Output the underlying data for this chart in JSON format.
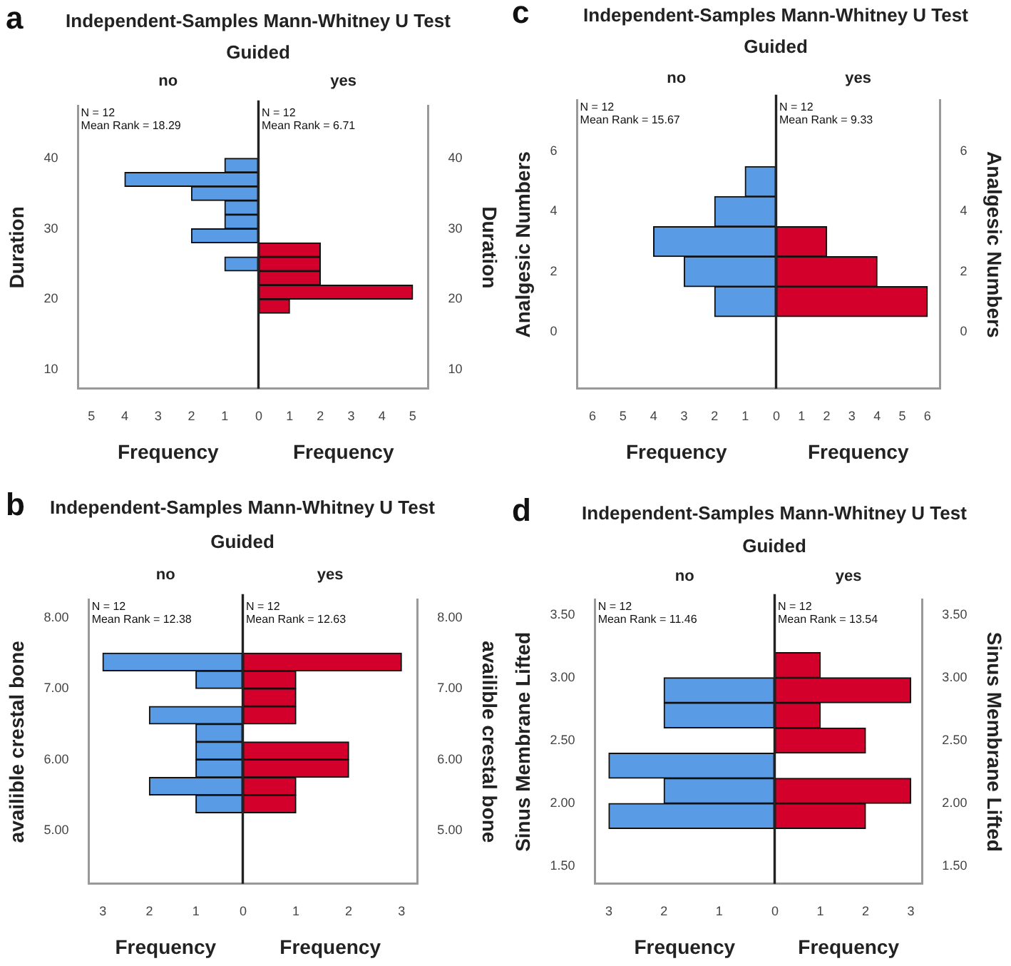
{
  "chart_data": [
    {
      "type": "histogram",
      "orientation": "horizontal",
      "title": "Independent-Samples Mann-Whitney U Test",
      "subtitle": "Guided",
      "annotations": [
        "a",
        "N = 12",
        "Mean Rank = 18.29"
      ],
      "xlabel": "Frequency",
      "ylabel": "Duration",
      "xlim": [
        5.4,
        0
      ],
      "xticks": [
        5,
        4,
        3,
        2,
        1
      ],
      "ylim": [
        7.3,
        47.4
      ],
      "yticks": [
        10,
        20,
        30,
        40
      ],
      "bins": [
        18,
        20,
        22,
        24,
        26,
        28,
        30,
        32,
        34,
        36,
        38,
        40
      ],
      "series": [
        {
          "name": "no",
          "color": "#5a9be6",
          "values": [
            0,
            0,
            0,
            1,
            0,
            2,
            1,
            1,
            2,
            4,
            1
          ]
        }
      ]
    },
    {
      "type": "histogram",
      "orientation": "horizontal",
      "annotations": [
        "N = 12",
        "Mean Rank = 6.71"
      ],
      "xlabel": "Frequency",
      "ylabel": "Duration",
      "xlim": [
        0,
        5.5
      ],
      "xticks": [
        0,
        1,
        2,
        3,
        4,
        5
      ],
      "ylim": [
        7.3,
        47.4
      ],
      "yticks": [
        10,
        20,
        30,
        40
      ],
      "bins": [
        18,
        20,
        22,
        24,
        26,
        28,
        30,
        32,
        34,
        36,
        38,
        40
      ],
      "series": [
        {
          "name": "yes",
          "color": "#d2002a",
          "values": [
            1,
            5,
            2,
            2,
            2,
            0,
            0,
            0,
            0,
            0,
            0
          ]
        }
      ]
    },
    {
      "type": "histogram",
      "orientation": "horizontal",
      "title": "Independent-Samples Mann-Whitney U Test",
      "subtitle": "Guided",
      "annotations": [
        "c",
        "N = 12",
        "Mean Rank = 15.67"
      ],
      "xlabel": "Frequency",
      "ylabel": "Analgesic Numbers",
      "xlim": [
        6.5,
        0
      ],
      "xticks": [
        6,
        5,
        4,
        3,
        2,
        1
      ],
      "ylim": [
        -1.9,
        7.7
      ],
      "yticks": [
        0,
        2,
        4,
        6
      ],
      "bins": [
        0.5,
        1.5,
        2.5,
        3.5,
        4.5,
        5.5
      ],
      "series": [
        {
          "name": "no",
          "color": "#5a9be6",
          "values": [
            2,
            3,
            4,
            2,
            1
          ]
        }
      ]
    },
    {
      "type": "histogram",
      "orientation": "horizontal",
      "annotations": [
        "N = 12",
        "Mean Rank = 9.33"
      ],
      "xlabel": "Frequency",
      "ylabel": "Analgesic Numbers",
      "xlim": [
        0,
        6.5
      ],
      "xticks": [
        0,
        1,
        2,
        3,
        4,
        5,
        6
      ],
      "ylim": [
        -1.9,
        7.7
      ],
      "yticks": [
        0,
        2,
        4,
        6
      ],
      "bins": [
        0.5,
        1.5,
        2.5,
        3.5,
        4.5,
        5.5
      ],
      "series": [
        {
          "name": "yes",
          "color": "#d2002a",
          "values": [
            6,
            4,
            2,
            0,
            0
          ]
        }
      ]
    },
    {
      "type": "histogram",
      "orientation": "horizontal",
      "title": "Independent-Samples Mann-Whitney U Test",
      "subtitle": "Guided",
      "annotations": [
        "b",
        "N = 12",
        "Mean Rank = 12.38"
      ],
      "xlabel": "Frequency",
      "ylabel": "availible crestal bone",
      "xlim": [
        3.3,
        0
      ],
      "xticks": [
        3,
        2,
        1
      ],
      "ylim": [
        4.25,
        8.25
      ],
      "yticks": [
        {
          "value": 5,
          "label": "5.00"
        },
        {
          "value": 6,
          "label": "6.00"
        },
        {
          "value": 7,
          "label": "7.00"
        },
        {
          "value": 8,
          "label": "8.00"
        }
      ],
      "bins": [
        5.25,
        5.5,
        5.75,
        6,
        6.25,
        6.5,
        6.75,
        7,
        7.25,
        7.5
      ],
      "series": [
        {
          "name": "no",
          "color": "#5a9be6",
          "values": [
            1,
            2,
            1,
            1,
            1,
            2,
            0,
            1,
            3
          ]
        }
      ]
    },
    {
      "type": "histogram",
      "orientation": "horizontal",
      "annotations": [
        "N = 12",
        "Mean Rank = 12.63"
      ],
      "xlabel": "Frequency",
      "ylabel": "availible crestal bone",
      "xlim": [
        0,
        3.3
      ],
      "xticks": [
        0,
        1,
        2,
        3
      ],
      "ylim": [
        4.25,
        8.25
      ],
      "yticks": [
        {
          "value": 5,
          "label": "5.00"
        },
        {
          "value": 6,
          "label": "6.00"
        },
        {
          "value": 7,
          "label": "7.00"
        },
        {
          "value": 8,
          "label": "8.00"
        }
      ],
      "bins": [
        5.25,
        5.5,
        5.75,
        6,
        6.25,
        6.5,
        6.75,
        7,
        7.25,
        7.5
      ],
      "series": [
        {
          "name": "yes",
          "color": "#d2002a",
          "values": [
            1,
            1,
            2,
            2,
            0,
            1,
            1,
            1,
            3
          ]
        }
      ]
    },
    {
      "type": "histogram",
      "orientation": "horizontal",
      "title": "Independent-Samples Mann-Whitney U Test",
      "subtitle": "Guided",
      "annotations": [
        "d",
        "N = 12",
        "Mean Rank = 11.46"
      ],
      "xlabel": "Frequency",
      "ylabel": "Sinus Membrane Lifted",
      "xlim": [
        3.25,
        0
      ],
      "xticks": [
        3,
        2,
        1
      ],
      "ylim": [
        1.36,
        3.62
      ],
      "yticks": [
        {
          "value": 1.5,
          "label": "1.50"
        },
        {
          "value": 2,
          "label": "2.00"
        },
        {
          "value": 2.5,
          "label": "2.50"
        },
        {
          "value": 3,
          "label": "3.00"
        },
        {
          "value": 3.5,
          "label": "3.50"
        }
      ],
      "bins": [
        1.8,
        2,
        2.2,
        2.4,
        2.6,
        2.8,
        3,
        3.2
      ],
      "series": [
        {
          "name": "no",
          "color": "#5a9be6",
          "values": [
            3,
            2,
            3,
            0,
            2,
            2,
            0
          ]
        }
      ]
    },
    {
      "type": "histogram",
      "orientation": "horizontal",
      "annotations": [
        "N = 12",
        "Mean Rank = 13.54"
      ],
      "xlabel": "Frequency",
      "ylabel": "Sinus Membrane Lifted",
      "xlim": [
        0,
        3.25
      ],
      "xticks": [
        0,
        1,
        2,
        3
      ],
      "ylim": [
        1.36,
        3.62
      ],
      "yticks": [
        {
          "value": 1.5,
          "label": "1.50"
        },
        {
          "value": 2,
          "label": "2.00"
        },
        {
          "value": 2.5,
          "label": "2.50"
        },
        {
          "value": 3,
          "label": "3.00"
        },
        {
          "value": 3.5,
          "label": "3.50"
        }
      ],
      "bins": [
        1.8,
        2,
        2.2,
        2.4,
        2.6,
        2.8,
        3,
        3.2
      ],
      "series": [
        {
          "name": "yes",
          "color": "#d2002a",
          "values": [
            2,
            3,
            0,
            2,
            1,
            3,
            1
          ]
        }
      ]
    }
  ]
}
